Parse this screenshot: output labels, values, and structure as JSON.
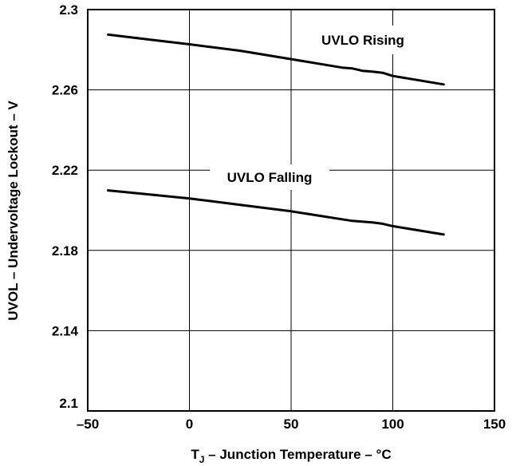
{
  "chart_data": {
    "type": "line",
    "xlabel_main": "T",
    "xlabel_sub": "J",
    "xlabel_rest": " – Junction Temperature – °C",
    "ylabel": "UVOL  – Undervoltage Lockout – V",
    "xlim": [
      -50,
      150
    ],
    "ylim": [
      2.1,
      2.3
    ],
    "x_ticks": [
      "–50",
      "0",
      "50",
      "100",
      "150"
    ],
    "x_tick_values": [
      -50,
      0,
      50,
      100,
      150
    ],
    "y_ticks": [
      "2.1",
      "2.14",
      "2.18",
      "2.22",
      "2.26",
      "2.3"
    ],
    "y_tick_values": [
      2.1,
      2.14,
      2.18,
      2.22,
      2.26,
      2.3
    ],
    "grid": true,
    "series": [
      {
        "name": "UVLO Rising",
        "x": [
          -40,
          -20,
          0,
          25,
          50,
          75,
          80,
          85,
          90,
          95,
          100,
          125
        ],
        "y": [
          2.2875,
          2.2851,
          2.2827,
          2.2795,
          2.2753,
          2.2711,
          2.2707,
          2.2695,
          2.2691,
          2.2685,
          2.2669,
          2.2627
        ]
      },
      {
        "name": "UVLO Falling",
        "x": [
          -40,
          -20,
          0,
          25,
          50,
          75,
          80,
          85,
          90,
          95,
          100,
          125
        ],
        "y": [
          2.2099,
          2.2079,
          2.2059,
          2.2027,
          2.1995,
          2.1955,
          2.1947,
          2.1943,
          2.1939,
          2.1933,
          2.1921,
          2.1879
        ]
      }
    ]
  }
}
